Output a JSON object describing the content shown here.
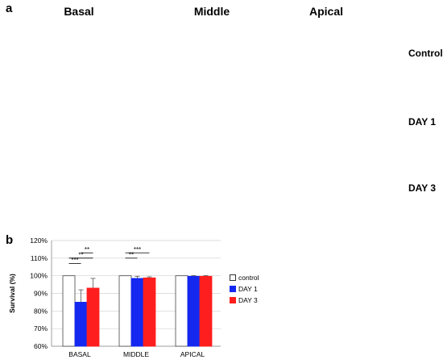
{
  "figure_a": {
    "panel_label": "a",
    "columns": [
      "Basal",
      "Middle",
      "Apical"
    ],
    "rows": [
      "Control",
      "DAY 1",
      "DAY 3"
    ]
  },
  "figure_b": {
    "panel_label": "b"
  },
  "colors": {
    "control": "#ffffff",
    "day1": "#1428f0",
    "day3": "#ff1e1e",
    "micro_bg": "#000000",
    "micro_cell": "#e01010",
    "micro_row": "#b40a0a",
    "trace": "#2a8a8a"
  },
  "chart_data": {
    "type": "bar",
    "ylabel": "Survival (%)",
    "categories": [
      "BASAL",
      "MIDDLE",
      "APICAL"
    ],
    "ylim": [
      60,
      120
    ],
    "yticks": [
      "60%",
      "70%",
      "80%",
      "90%",
      "100%",
      "110%",
      "120%"
    ],
    "series": [
      {
        "name": "control",
        "values": [
          100,
          100,
          100
        ],
        "errors": [
          0,
          0,
          0
        ]
      },
      {
        "name": "DAY 1",
        "values": [
          85,
          98.5,
          99.7
        ],
        "errors": [
          7,
          1.2,
          0.4
        ]
      },
      {
        "name": "DAY 3",
        "values": [
          93,
          98.8,
          99.7
        ],
        "errors": [
          5.5,
          0.6,
          0.4
        ]
      }
    ],
    "significance": [
      {
        "category": "BASAL",
        "from": 0,
        "to": 1,
        "label": "***"
      },
      {
        "category": "BASAL",
        "from": 0,
        "to": 2,
        "label": "**"
      },
      {
        "category": "BASAL",
        "from": 1,
        "to": 2,
        "label": "**"
      },
      {
        "category": "MIDDLE",
        "from": 0,
        "to": 1,
        "label": "**"
      },
      {
        "category": "MIDDLE",
        "from": 0,
        "to": 2,
        "label": "***"
      }
    ],
    "legend_position": "right"
  }
}
